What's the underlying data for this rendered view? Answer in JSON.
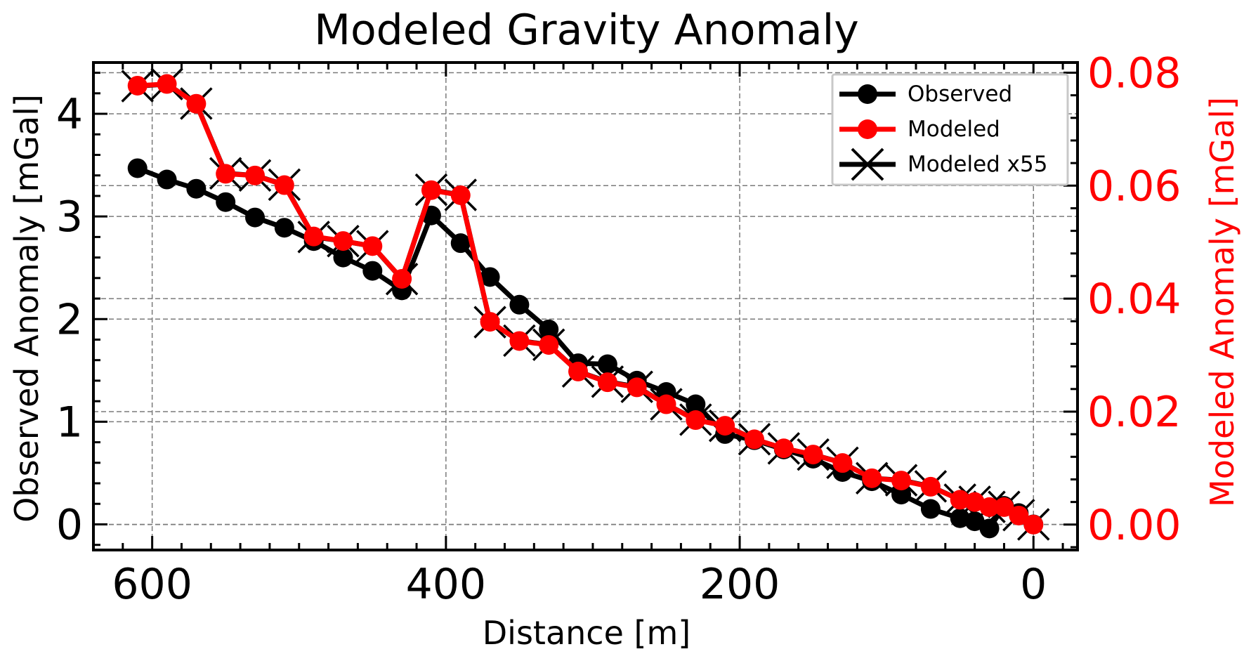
{
  "chart_data": {
    "type": "line",
    "title": "Modeled Gravity Anomaly",
    "xlabel": "Distance [m]",
    "ylabel": "Observed Anomaly [mGal]",
    "y2label": "Modeled Anomaly [mGal]",
    "xlim": [
      640,
      -30
    ],
    "ylim": [
      -0.25,
      4.5
    ],
    "y2lim": [
      -0.0045,
      0.0818
    ],
    "xticks": [
      600,
      400,
      200,
      0
    ],
    "yticks": [
      0,
      1,
      2,
      3,
      4
    ],
    "y2ticks": [
      0.0,
      0.02,
      0.04,
      0.06,
      0.08
    ],
    "x_tick_labels": [
      "600",
      "400",
      "200",
      "0"
    ],
    "y_tick_labels": [
      "0",
      "1",
      "2",
      "3",
      "4"
    ],
    "y2_tick_labels": [
      "0.00",
      "0.02",
      "0.04",
      "0.06",
      "0.08"
    ],
    "grid": true,
    "legend_position": "top-right",
    "colors": {
      "observed": "#000000",
      "modeled": "#ff0000",
      "y2axis": "#ff0000"
    },
    "series": [
      {
        "name": "Observed",
        "axis": "left",
        "marker": "circle",
        "x": [
          610,
          590,
          570,
          550,
          530,
          510,
          490,
          470,
          450,
          430,
          410,
          390,
          370,
          350,
          330,
          310,
          290,
          270,
          250,
          230,
          210,
          190,
          170,
          150,
          130,
          110,
          90,
          70,
          50,
          40,
          30,
          20,
          10,
          0
        ],
        "y": [
          3.47,
          3.36,
          3.27,
          3.14,
          2.99,
          2.89,
          2.76,
          2.6,
          2.47,
          2.28,
          3.01,
          2.74,
          2.41,
          2.14,
          1.9,
          1.57,
          1.56,
          1.4,
          1.29,
          1.17,
          0.88,
          0.82,
          0.73,
          0.64,
          0.51,
          0.42,
          0.29,
          0.15,
          0.06,
          0.03,
          -0.04,
          0.18,
          0.11,
          0.0
        ]
      },
      {
        "name": "Modeled",
        "axis": "right",
        "marker": "circle",
        "x": [
          610,
          590,
          570,
          550,
          530,
          510,
          490,
          470,
          450,
          430,
          410,
          390,
          370,
          350,
          330,
          310,
          290,
          270,
          250,
          230,
          210,
          190,
          170,
          150,
          130,
          110,
          90,
          70,
          50,
          40,
          30,
          20,
          10,
          0
        ],
        "y": [
          0.0777,
          0.078,
          0.0745,
          0.0621,
          0.0618,
          0.0601,
          0.051,
          0.0502,
          0.0493,
          0.0435,
          0.0592,
          0.0583,
          0.0359,
          0.0325,
          0.0318,
          0.0271,
          0.0252,
          0.0243,
          0.0213,
          0.0185,
          0.0175,
          0.0151,
          0.0135,
          0.0124,
          0.0109,
          0.0082,
          0.0078,
          0.0067,
          0.0044,
          0.004,
          0.0031,
          0.0031,
          0.0016,
          0.0
        ]
      },
      {
        "name": "Modeled x55",
        "axis": "left",
        "marker": "x",
        "x": [
          610,
          590,
          570,
          550,
          530,
          510,
          490,
          470,
          450,
          430,
          410,
          390,
          370,
          350,
          330,
          310,
          290,
          270,
          250,
          230,
          210,
          190,
          170,
          150,
          130,
          110,
          90,
          70,
          50,
          40,
          30,
          20,
          10,
          0
        ],
        "y": [
          4.27,
          4.29,
          4.1,
          3.42,
          3.4,
          3.31,
          2.8,
          2.76,
          2.71,
          2.39,
          3.26,
          3.21,
          1.97,
          1.79,
          1.75,
          1.49,
          1.39,
          1.34,
          1.17,
          1.02,
          0.96,
          0.83,
          0.74,
          0.68,
          0.6,
          0.45,
          0.43,
          0.37,
          0.24,
          0.22,
          0.17,
          0.17,
          0.09,
          0.0
        ]
      }
    ]
  }
}
